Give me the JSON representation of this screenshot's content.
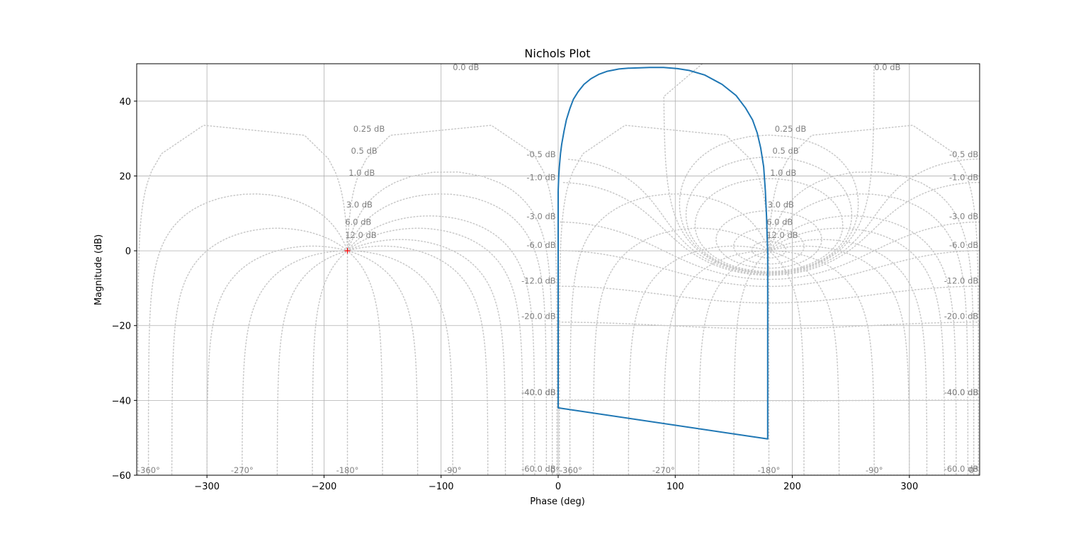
{
  "chart_data": {
    "type": "line",
    "title": "Nichols Plot",
    "xlabel": "Phase (deg)",
    "ylabel": "Magnitude (dB)",
    "xlim": [
      -360,
      360
    ],
    "ylim": [
      -60,
      50
    ],
    "xticks": [
      -300,
      -200,
      -100,
      0,
      100,
      200,
      300
    ],
    "yticks": [
      -60,
      -40,
      -20,
      0,
      20,
      40
    ],
    "grid": true,
    "series": [
      {
        "color": "#1f77b4",
        "x": [
          0,
          0.5,
          1,
          2,
          3,
          5,
          7,
          10,
          13,
          17,
          22,
          28,
          35,
          42,
          52,
          60,
          70,
          78,
          90,
          102,
          112,
          125,
          140,
          152,
          160,
          166,
          170,
          173,
          175.5,
          177,
          178,
          178.5,
          179,
          179,
          179,
          0,
          0,
          0,
          0,
          0
        ],
        "y": [
          16,
          20,
          22.5,
          26,
          28.5,
          32,
          35,
          38,
          40.5,
          42.5,
          44.5,
          46,
          47.2,
          48,
          48.6,
          48.8,
          48.9,
          49,
          49,
          48.7,
          48.2,
          47,
          44.5,
          41.5,
          38.2,
          35,
          31.5,
          27.5,
          22.5,
          16,
          9,
          4,
          0,
          -20,
          -50.3,
          -42,
          -20,
          -5,
          0,
          16
        ]
      }
    ],
    "marker": {
      "x": -180,
      "y": 0,
      "color": "#ff0000",
      "symbol": "+"
    },
    "nichols_grid": {
      "line_color": "#c8c8c8",
      "closed_loop_magnitude_db": [
        0,
        0.25,
        0.5,
        1,
        3,
        6,
        12,
        -0.5,
        -1,
        -3,
        -6,
        -12,
        -20,
        -40,
        -60
      ],
      "magnitude_labels_left": [
        {
          "text": "0.0 dB",
          "phase": -90,
          "db": 48.3
        },
        {
          "text": "0.25 dB",
          "phase": -175,
          "db": 31.8
        },
        {
          "text": "0.5 dB",
          "phase": -177,
          "db": 26.0
        },
        {
          "text": "1.0 dB",
          "phase": -179,
          "db": 20.1
        },
        {
          "text": "3.0 dB",
          "phase": -181,
          "db": 11.6
        },
        {
          "text": "6.0 dB",
          "phase": -182,
          "db": 6.9
        },
        {
          "text": "12.0 dB",
          "phase": -182,
          "db": 3.4
        }
      ],
      "magnitude_labels_right": [
        {
          "text": "0.0 dB",
          "phase": 270,
          "db": 48.3
        },
        {
          "text": "0.25 dB",
          "phase": 185,
          "db": 31.8
        },
        {
          "text": "0.5 dB",
          "phase": 183,
          "db": 26.0
        },
        {
          "text": "1.0 dB",
          "phase": 181,
          "db": 20.1
        },
        {
          "text": "3.0 dB",
          "phase": 179,
          "db": 11.6
        },
        {
          "text": "6.0 dB",
          "phase": 178,
          "db": 6.9
        },
        {
          "text": "12.0 dB",
          "phase": 178,
          "db": 3.4
        }
      ],
      "negative_labels_mid": [
        {
          "text": "-0.5 dB",
          "db": 25.0
        },
        {
          "text": "-1.0 dB",
          "db": 18.9
        },
        {
          "text": "-3.0 dB",
          "db": 8.4
        },
        {
          "text": "-6.0 dB",
          "db": 0.8
        },
        {
          "text": "-12.0 dB",
          "db": -8.8
        },
        {
          "text": "-20.0 dB",
          "db": -18.3
        },
        {
          "text": "-40.0 dB",
          "db": -38.6
        },
        {
          "text": "-40.0 dB",
          "db": -38.6
        },
        {
          "text": "-60.0 dB",
          "db": -59.1
        }
      ],
      "negative_labels_right": [
        {
          "text": "-0.5 dB",
          "db": 25.0
        },
        {
          "text": "-1.0 dB",
          "db": 18.9
        },
        {
          "text": "-3.0 dB",
          "db": 8.4
        },
        {
          "text": "-6.0 dB",
          "db": 0.8
        },
        {
          "text": "-12.0 dB",
          "db": -8.8
        },
        {
          "text": "-20.0 dB",
          "db": -18.3
        },
        {
          "text": "-40.0 dB",
          "db": -38.6
        },
        {
          "text": "-40.0 dB",
          "db": -38.6
        },
        {
          "text": "-60.0 dB",
          "db": -59.1
        }
      ],
      "phase_labels": [
        {
          "text": "-360°",
          "phase": -360
        },
        {
          "text": "-270°",
          "phase": -270
        },
        {
          "text": "-180°",
          "phase": -180
        },
        {
          "text": "-90°",
          "phase": -90
        },
        {
          "text": "0°",
          "phase": 0
        },
        {
          "text": "-360°",
          "phase": 0
        },
        {
          "text": "-270°",
          "phase": 90
        },
        {
          "text": "-180°",
          "phase": 180
        },
        {
          "text": "-90°",
          "phase": 270
        },
        {
          "text": "0°",
          "phase": 360
        }
      ]
    }
  }
}
